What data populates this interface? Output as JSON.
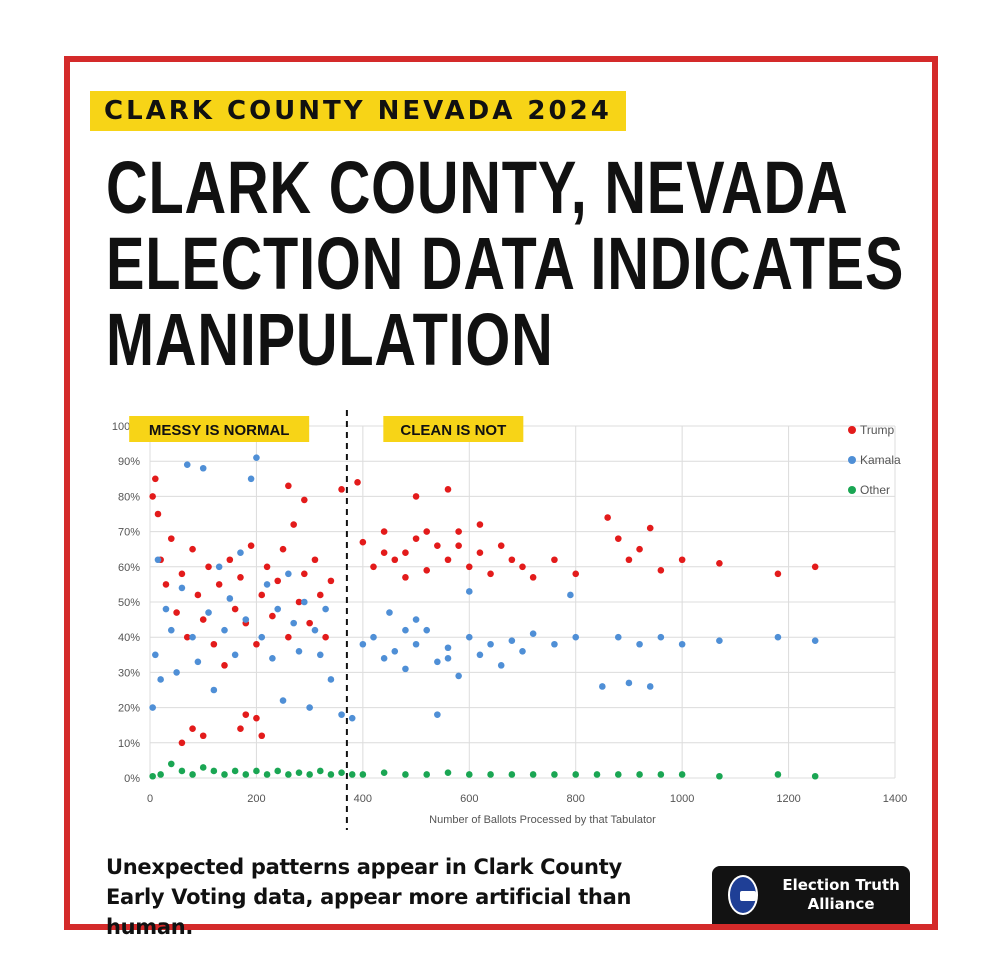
{
  "header": {
    "tag": "CLARK COUNTY NEVADA 2024",
    "headline_lines": [
      "CLARK COUNTY, NEVADA",
      "ELECTION DATA INDICATES",
      "MANIPULATION"
    ]
  },
  "caption": "Unexpected patterns appear in Clark County Early Voting data, appear more artificial than human.",
  "brand": {
    "name": "Election Truth Alliance",
    "logo": "ballot-box-seal-icon"
  },
  "colors": {
    "frame": "#d42a2a",
    "tag_bg": "#f7d417",
    "trump": "#e31b1b",
    "kamala": "#4f8fd6",
    "other": "#1aa653"
  },
  "chart_data": {
    "type": "scatter",
    "title": "",
    "xlabel": "Number of Ballots Processed by that Tabulator",
    "ylabel": "",
    "xlim": [
      0,
      1400
    ],
    "ylim": [
      0,
      100
    ],
    "xticks": [
      0,
      200,
      400,
      600,
      800,
      1000,
      1200,
      1400
    ],
    "yticks": [
      0,
      10,
      20,
      30,
      40,
      50,
      60,
      70,
      80,
      90,
      100
    ],
    "ytick_labels": [
      "0%",
      "10%",
      "20%",
      "30%",
      "40%",
      "50%",
      "60%",
      "70%",
      "80%",
      "90%",
      "100%"
    ],
    "divider_x": 370,
    "annotations": [
      {
        "text": "MESSY IS NORMAL",
        "x": 130,
        "y": 97
      },
      {
        "text": "CLEAN IS NOT",
        "x": 570,
        "y": 97
      }
    ],
    "legend_position": "top-right",
    "series": [
      {
        "name": "Trump",
        "points": [
          [
            5,
            80
          ],
          [
            10,
            85
          ],
          [
            15,
            75
          ],
          [
            20,
            62
          ],
          [
            30,
            55
          ],
          [
            40,
            68
          ],
          [
            50,
            47
          ],
          [
            60,
            58
          ],
          [
            70,
            40
          ],
          [
            80,
            65
          ],
          [
            90,
            52
          ],
          [
            100,
            45
          ],
          [
            110,
            60
          ],
          [
            120,
            38
          ],
          [
            130,
            55
          ],
          [
            140,
            32
          ],
          [
            150,
            62
          ],
          [
            160,
            48
          ],
          [
            170,
            57
          ],
          [
            180,
            44
          ],
          [
            190,
            66
          ],
          [
            200,
            38
          ],
          [
            210,
            52
          ],
          [
            220,
            60
          ],
          [
            230,
            46
          ],
          [
            240,
            56
          ],
          [
            250,
            65
          ],
          [
            260,
            40
          ],
          [
            270,
            72
          ],
          [
            280,
            50
          ],
          [
            290,
            58
          ],
          [
            300,
            44
          ],
          [
            310,
            62
          ],
          [
            320,
            52
          ],
          [
            330,
            40
          ],
          [
            340,
            56
          ],
          [
            60,
            10
          ],
          [
            80,
            14
          ],
          [
            100,
            12
          ],
          [
            180,
            18
          ],
          [
            200,
            17
          ],
          [
            210,
            12
          ],
          [
            170,
            14
          ],
          [
            360,
            82
          ],
          [
            390,
            84
          ],
          [
            420,
            60
          ],
          [
            440,
            70
          ],
          [
            460,
            62
          ],
          [
            480,
            64
          ],
          [
            500,
            68
          ],
          [
            520,
            59
          ],
          [
            540,
            66
          ],
          [
            560,
            62
          ],
          [
            580,
            70
          ],
          [
            600,
            60
          ],
          [
            620,
            64
          ],
          [
            640,
            58
          ],
          [
            660,
            66
          ],
          [
            680,
            62
          ],
          [
            700,
            60
          ],
          [
            720,
            57
          ],
          [
            760,
            62
          ],
          [
            800,
            58
          ],
          [
            860,
            74
          ],
          [
            880,
            68
          ],
          [
            900,
            62
          ],
          [
            920,
            65
          ],
          [
            940,
            71
          ],
          [
            960,
            59
          ],
          [
            1000,
            62
          ],
          [
            1070,
            61
          ],
          [
            1180,
            58
          ],
          [
            1250,
            60
          ],
          [
            560,
            82
          ],
          [
            500,
            80
          ],
          [
            260,
            83
          ],
          [
            290,
            79
          ],
          [
            400,
            67
          ],
          [
            520,
            70
          ],
          [
            480,
            57
          ],
          [
            620,
            72
          ],
          [
            440,
            64
          ],
          [
            580,
            66
          ]
        ]
      },
      {
        "name": "Kamala",
        "points": [
          [
            5,
            20
          ],
          [
            10,
            35
          ],
          [
            15,
            62
          ],
          [
            20,
            28
          ],
          [
            30,
            48
          ],
          [
            40,
            42
          ],
          [
            50,
            30
          ],
          [
            60,
            54
          ],
          [
            70,
            89
          ],
          [
            80,
            40
          ],
          [
            90,
            33
          ],
          [
            100,
            88
          ],
          [
            110,
            47
          ],
          [
            120,
            25
          ],
          [
            130,
            60
          ],
          [
            140,
            42
          ],
          [
            150,
            51
          ],
          [
            160,
            35
          ],
          [
            170,
            64
          ],
          [
            180,
            45
          ],
          [
            190,
            85
          ],
          [
            200,
            91
          ],
          [
            210,
            40
          ],
          [
            220,
            55
          ],
          [
            230,
            34
          ],
          [
            240,
            48
          ],
          [
            250,
            22
          ],
          [
            260,
            58
          ],
          [
            270,
            44
          ],
          [
            280,
            36
          ],
          [
            290,
            50
          ],
          [
            300,
            20
          ],
          [
            310,
            42
          ],
          [
            320,
            35
          ],
          [
            330,
            48
          ],
          [
            340,
            28
          ],
          [
            360,
            18
          ],
          [
            380,
            17
          ],
          [
            400,
            38
          ],
          [
            420,
            40
          ],
          [
            440,
            34
          ],
          [
            460,
            36
          ],
          [
            480,
            31
          ],
          [
            500,
            38
          ],
          [
            520,
            42
          ],
          [
            540,
            33
          ],
          [
            560,
            37
          ],
          [
            580,
            29
          ],
          [
            600,
            40
          ],
          [
            620,
            35
          ],
          [
            640,
            38
          ],
          [
            660,
            32
          ],
          [
            680,
            39
          ],
          [
            700,
            36
          ],
          [
            720,
            41
          ],
          [
            760,
            38
          ],
          [
            790,
            52
          ],
          [
            800,
            40
          ],
          [
            850,
            26
          ],
          [
            880,
            40
          ],
          [
            900,
            27
          ],
          [
            920,
            38
          ],
          [
            940,
            26
          ],
          [
            960,
            40
          ],
          [
            1000,
            38
          ],
          [
            1070,
            39
          ],
          [
            1180,
            40
          ],
          [
            1250,
            39
          ],
          [
            540,
            18
          ],
          [
            500,
            45
          ],
          [
            450,
            47
          ],
          [
            600,
            53
          ],
          [
            480,
            42
          ],
          [
            560,
            34
          ]
        ]
      },
      {
        "name": "Other",
        "points": [
          [
            5,
            0.5
          ],
          [
            20,
            1
          ],
          [
            40,
            4
          ],
          [
            60,
            2
          ],
          [
            80,
            1
          ],
          [
            100,
            3
          ],
          [
            120,
            2
          ],
          [
            140,
            1
          ],
          [
            160,
            2
          ],
          [
            180,
            1
          ],
          [
            200,
            2
          ],
          [
            220,
            1
          ],
          [
            240,
            2
          ],
          [
            260,
            1
          ],
          [
            280,
            1.5
          ],
          [
            300,
            1
          ],
          [
            320,
            2
          ],
          [
            340,
            1
          ],
          [
            360,
            1.5
          ],
          [
            380,
            1
          ],
          [
            400,
            1
          ],
          [
            440,
            1.5
          ],
          [
            480,
            1
          ],
          [
            520,
            1
          ],
          [
            560,
            1.5
          ],
          [
            600,
            1
          ],
          [
            640,
            1
          ],
          [
            680,
            1
          ],
          [
            720,
            1
          ],
          [
            760,
            1
          ],
          [
            800,
            1
          ],
          [
            840,
            1
          ],
          [
            880,
            1
          ],
          [
            920,
            1
          ],
          [
            960,
            1
          ],
          [
            1000,
            1
          ],
          [
            1070,
            0.5
          ],
          [
            1180,
            1
          ],
          [
            1250,
            0.5
          ]
        ]
      }
    ]
  }
}
